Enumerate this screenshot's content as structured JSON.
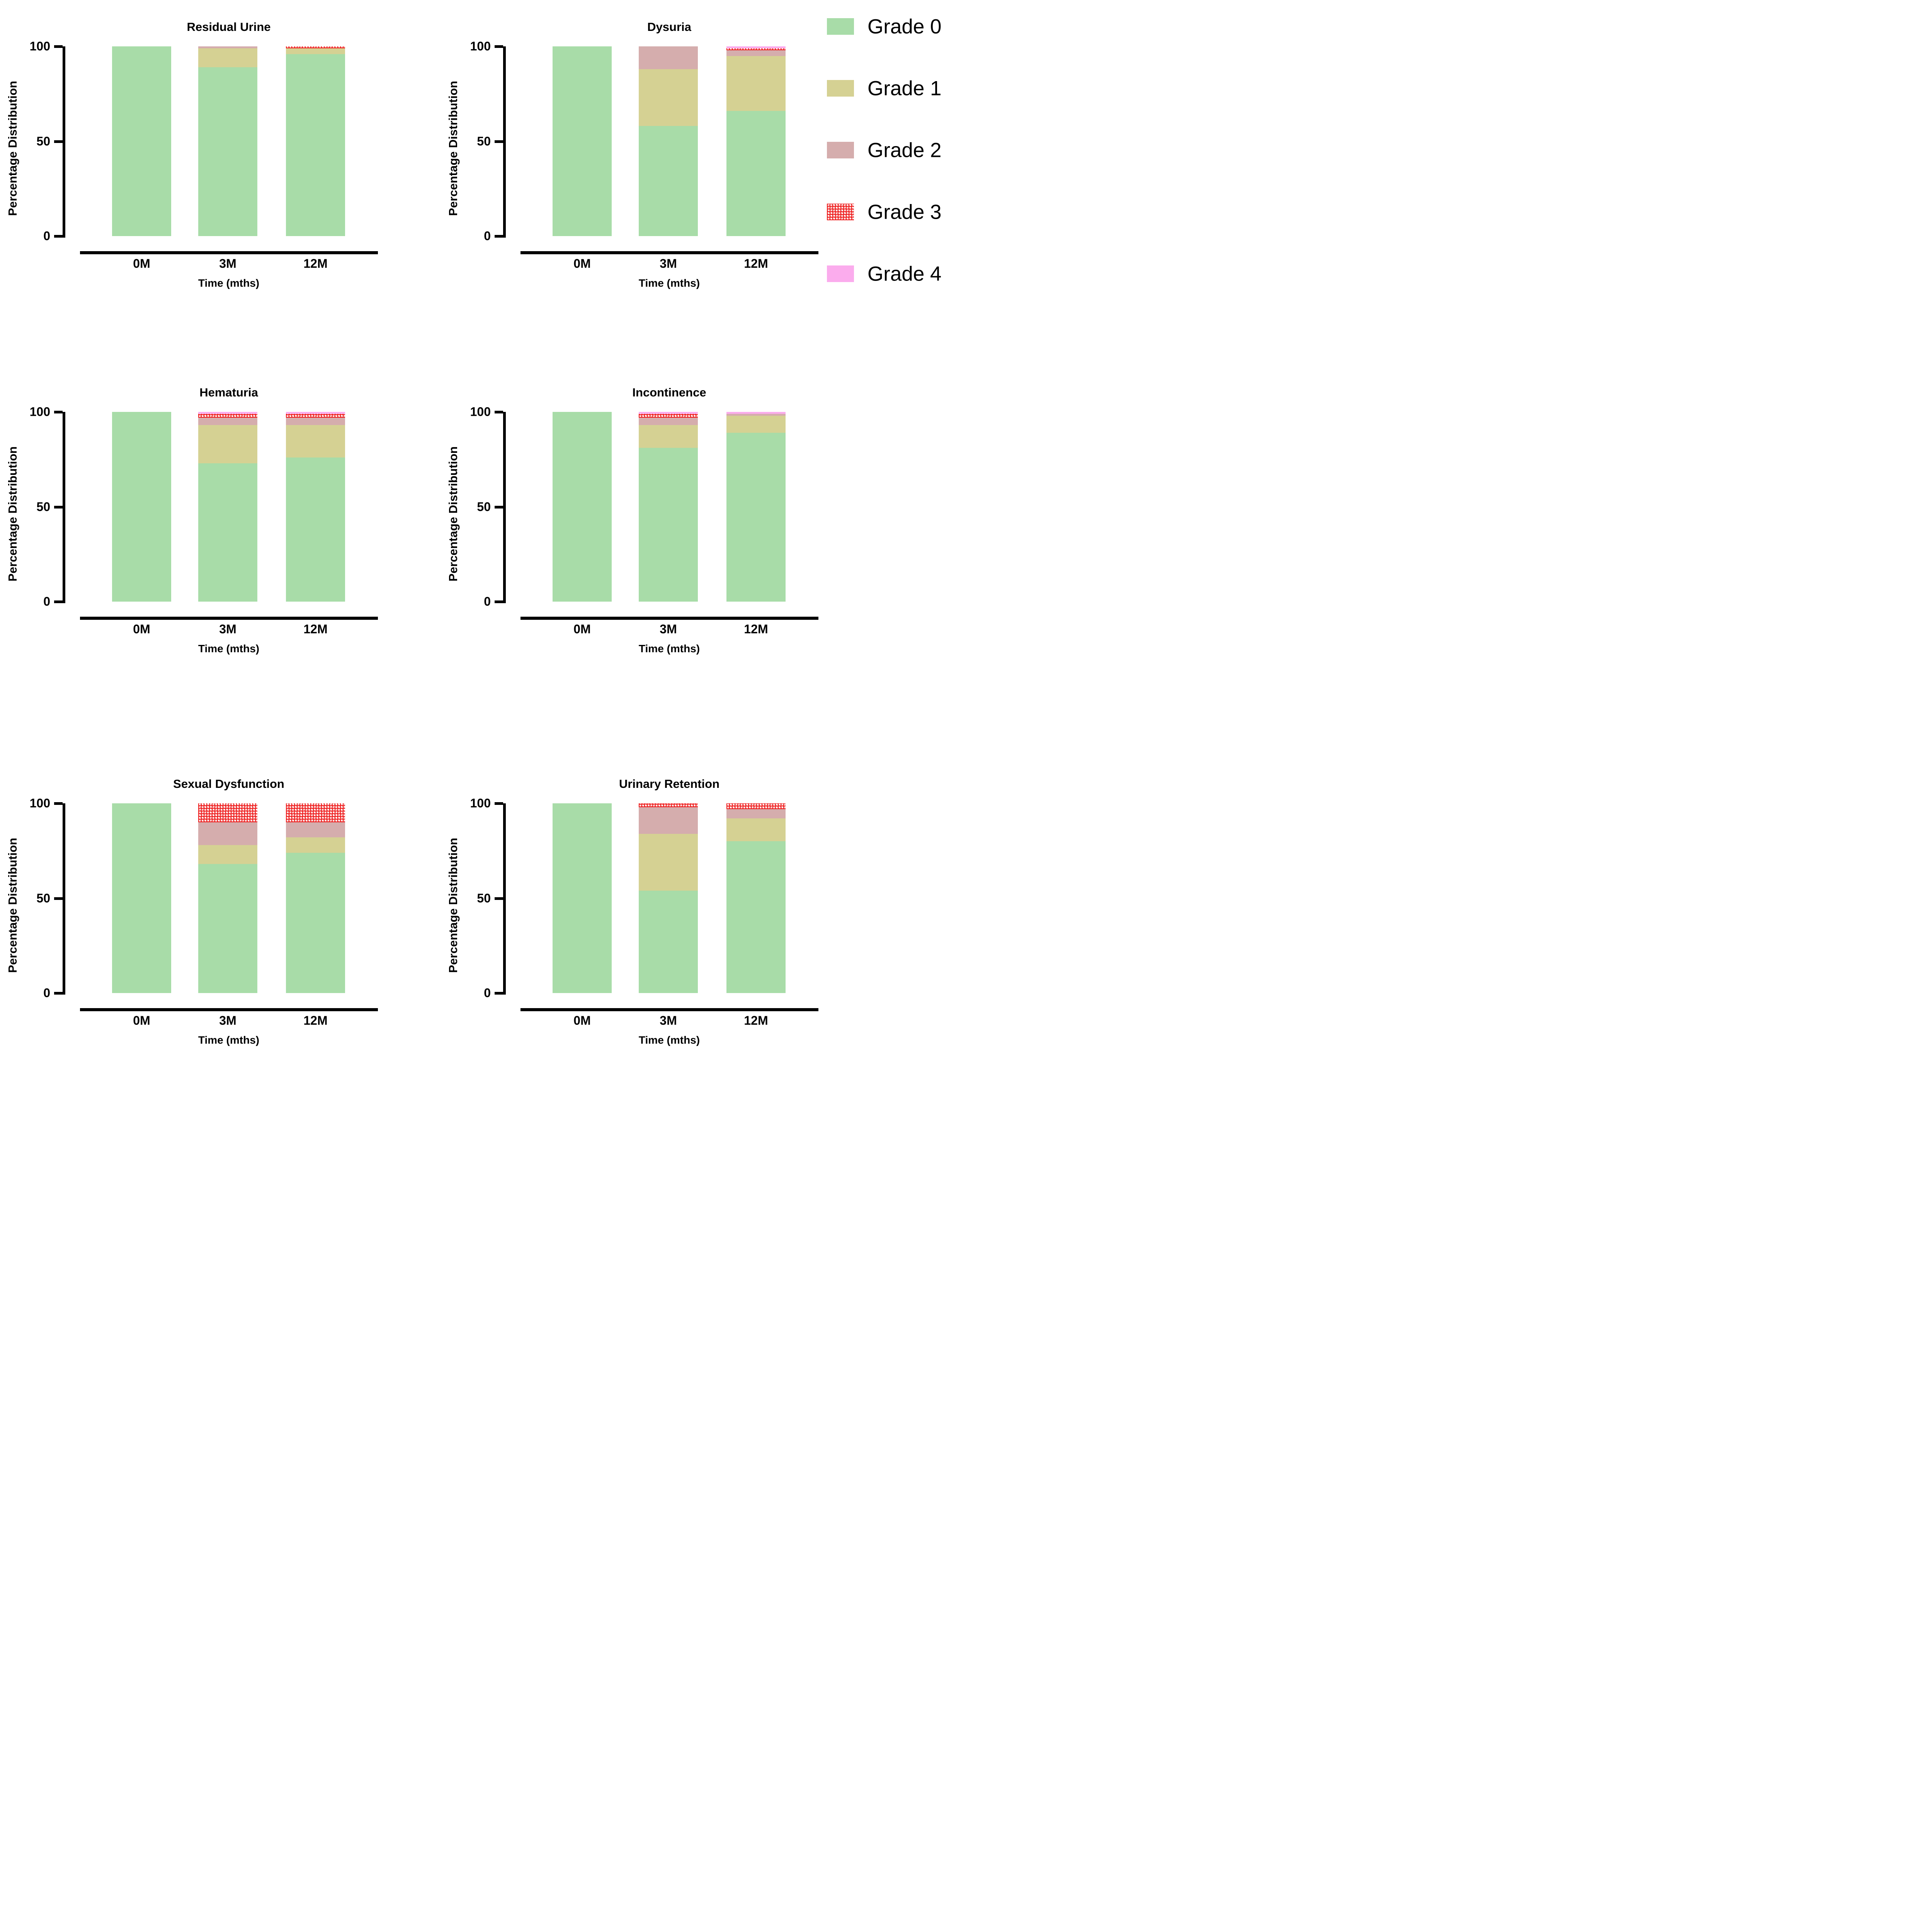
{
  "axis": {
    "ylabel": "Percentage Distribution",
    "xlabel": "Time (mths)",
    "yticks": [
      "100",
      "50",
      "0"
    ],
    "xticks": [
      "0M",
      "3M",
      "12M"
    ]
  },
  "legend": {
    "position": "top-right",
    "items": [
      {
        "label": "Grade 0",
        "color": "#a8dca8",
        "pattern": "solid"
      },
      {
        "label": "Grade 1",
        "color": "#d5d193",
        "pattern": "solid"
      },
      {
        "label": "Grade 2",
        "color": "#d5adad",
        "pattern": "solid"
      },
      {
        "label": "Grade 3",
        "color": "#ee1515",
        "pattern": "crosshatch"
      },
      {
        "label": "Grade 4",
        "color": "#fbaced",
        "pattern": "solid"
      }
    ]
  },
  "chart_data": [
    {
      "type": "bar",
      "stacked": true,
      "title": "Residual Urine",
      "categories": [
        "0M",
        "3M",
        "12M"
      ],
      "series": [
        {
          "name": "Grade 0",
          "values": [
            100,
            89,
            96
          ]
        },
        {
          "name": "Grade 1",
          "values": [
            0,
            10,
            3
          ]
        },
        {
          "name": "Grade 2",
          "values": [
            0,
            1,
            0
          ]
        },
        {
          "name": "Grade 3",
          "values": [
            0,
            0,
            1
          ]
        },
        {
          "name": "Grade 4",
          "values": [
            0,
            0,
            0
          ]
        }
      ],
      "xlabel": "Time (mths)",
      "ylabel": "Percentage Distribution",
      "ylim": [
        0,
        100
      ],
      "grid": false,
      "legend_position": "figure-right"
    },
    {
      "type": "bar",
      "stacked": true,
      "title": "Dysuria",
      "categories": [
        "0M",
        "3M",
        "12M"
      ],
      "series": [
        {
          "name": "Grade 0",
          "values": [
            100,
            58,
            66
          ]
        },
        {
          "name": "Grade 1",
          "values": [
            0,
            30,
            29
          ]
        },
        {
          "name": "Grade 2",
          "values": [
            0,
            12,
            3
          ]
        },
        {
          "name": "Grade 3",
          "values": [
            0,
            0,
            1
          ]
        },
        {
          "name": "Grade 4",
          "values": [
            0,
            0,
            1
          ]
        }
      ],
      "xlabel": "Time (mths)",
      "ylabel": "Percentage Distribution",
      "ylim": [
        0,
        100
      ],
      "grid": false,
      "legend_position": "figure-right"
    },
    {
      "type": "bar",
      "stacked": true,
      "title": "Hematuria",
      "categories": [
        "0M",
        "3M",
        "12M"
      ],
      "series": [
        {
          "name": "Grade 0",
          "values": [
            100,
            73,
            76
          ]
        },
        {
          "name": "Grade 1",
          "values": [
            0,
            20,
            17
          ]
        },
        {
          "name": "Grade 2",
          "values": [
            0,
            4,
            4
          ]
        },
        {
          "name": "Grade 3",
          "values": [
            0,
            2,
            2
          ]
        },
        {
          "name": "Grade 4",
          "values": [
            0,
            1,
            1
          ]
        }
      ],
      "xlabel": "Time (mths)",
      "ylabel": "Percentage Distribution",
      "ylim": [
        0,
        100
      ],
      "grid": false,
      "legend_position": "figure-right"
    },
    {
      "type": "bar",
      "stacked": true,
      "title": "Incontinence",
      "categories": [
        "0M",
        "3M",
        "12M"
      ],
      "series": [
        {
          "name": "Grade 0",
          "values": [
            100,
            81,
            89
          ]
        },
        {
          "name": "Grade 1",
          "values": [
            0,
            12,
            9
          ]
        },
        {
          "name": "Grade 2",
          "values": [
            0,
            4,
            1
          ]
        },
        {
          "name": "Grade 3",
          "values": [
            0,
            2,
            0
          ]
        },
        {
          "name": "Grade 4",
          "values": [
            0,
            1,
            1
          ]
        }
      ],
      "xlabel": "Time (mths)",
      "ylabel": "Percentage Distribution",
      "ylim": [
        0,
        100
      ],
      "grid": false,
      "legend_position": "figure-right"
    },
    {
      "type": "bar",
      "stacked": true,
      "title": "Sexual Dysfunction",
      "categories": [
        "0M",
        "3M",
        "12M"
      ],
      "series": [
        {
          "name": "Grade 0",
          "values": [
            100,
            68,
            74
          ]
        },
        {
          "name": "Grade 1",
          "values": [
            0,
            10,
            8
          ]
        },
        {
          "name": "Grade 2",
          "values": [
            0,
            12,
            8
          ]
        },
        {
          "name": "Grade 3",
          "values": [
            0,
            10,
            10
          ]
        },
        {
          "name": "Grade 4",
          "values": [
            0,
            0,
            0
          ]
        }
      ],
      "xlabel": "Time (mths)",
      "ylabel": "Percentage Distribution",
      "ylim": [
        0,
        100
      ],
      "grid": false,
      "legend_position": "figure-right"
    },
    {
      "type": "bar",
      "stacked": true,
      "title": "Urinary Retention",
      "categories": [
        "0M",
        "3M",
        "12M"
      ],
      "series": [
        {
          "name": "Grade 0",
          "values": [
            100,
            54,
            80
          ]
        },
        {
          "name": "Grade 1",
          "values": [
            0,
            30,
            12
          ]
        },
        {
          "name": "Grade 2",
          "values": [
            0,
            14,
            5
          ]
        },
        {
          "name": "Grade 3",
          "values": [
            0,
            2,
            3
          ]
        },
        {
          "name": "Grade 4",
          "values": [
            0,
            0,
            0
          ]
        }
      ],
      "xlabel": "Time (mths)",
      "ylabel": "Percentage Distribution",
      "ylim": [
        0,
        100
      ],
      "grid": false,
      "legend_position": "figure-right"
    }
  ]
}
